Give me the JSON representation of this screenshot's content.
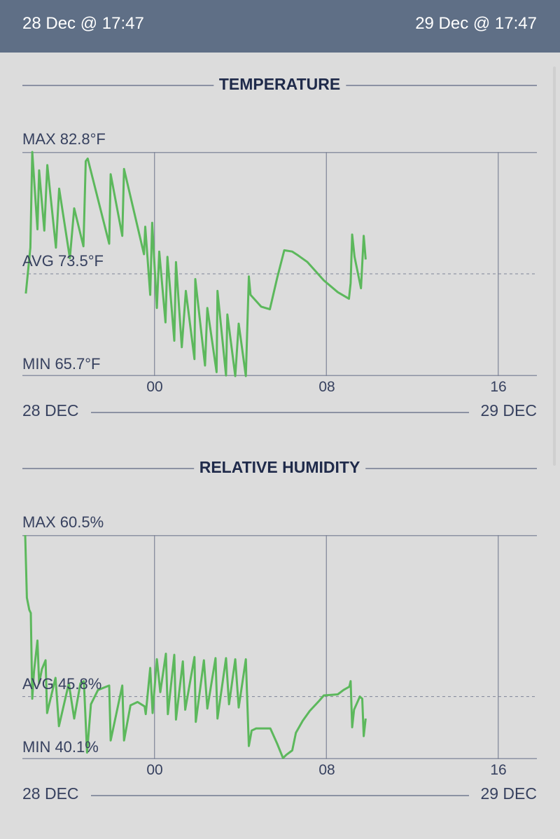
{
  "header": {
    "start": "28 Dec @ 17:47",
    "end": "29 Dec @ 17:47"
  },
  "colors": {
    "header_bg": "#5f6f86",
    "line": "#5cb85c",
    "text": "#37415f",
    "title": "#1f2a4a"
  },
  "x_ticks": [
    "00",
    "08",
    "16"
  ],
  "date_start": "28 DEC",
  "date_end": "29 DEC",
  "chart_data": [
    {
      "type": "line",
      "title": "TEMPERATURE",
      "max_label": "MAX 82.8°F",
      "avg_label": "AVG 73.5°F",
      "min_label": "MIN 65.7°F",
      "ylim": [
        65.7,
        82.8
      ],
      "avg": 73.5,
      "xlim_hours": [
        -6.15,
        17.8
      ],
      "x_ticks_hours": [
        0,
        8,
        16
      ],
      "x_unit": "hours from 29 Dec 00:00",
      "x": [
        -5.99,
        -5.78,
        -5.69,
        -5.45,
        -5.37,
        -5.13,
        -4.99,
        -4.59,
        -4.44,
        -3.94,
        -3.74,
        -3.31,
        -3.2,
        -3.11,
        -2.11,
        -2.04,
        -1.5,
        -1.42,
        -0.49,
        -0.43,
        -0.2,
        -0.11,
        0.11,
        0.22,
        0.51,
        0.6,
        0.92,
        1.0,
        1.27,
        1.46,
        1.86,
        1.9,
        2.35,
        2.46,
        2.89,
        2.93,
        3.33,
        3.39,
        3.76,
        3.92,
        4.25,
        4.39,
        4.47,
        4.96,
        5.37,
        5.71,
        6.04,
        6.41,
        6.69,
        7.12,
        7.88,
        8.53,
        9.05,
        9.13,
        9.2,
        9.31,
        9.61,
        9.74,
        9.83
      ],
      "y": [
        72.0,
        75.5,
        82.8,
        76.9,
        81.4,
        76.8,
        81.8,
        75.5,
        80.0,
        74.7,
        78.5,
        75.6,
        82.1,
        82.3,
        75.8,
        81.1,
        76.4,
        81.5,
        75.0,
        77.1,
        71.9,
        77.4,
        70.9,
        75.2,
        69.8,
        74.8,
        68.4,
        74.4,
        67.9,
        72.2,
        67.0,
        73.1,
        66.5,
        70.9,
        66.0,
        72.2,
        65.75,
        70.4,
        65.7,
        69.7,
        65.7,
        73.3,
        71.9,
        71.0,
        70.8,
        73.2,
        75.3,
        75.2,
        74.9,
        74.4,
        73.0,
        72.1,
        71.6,
        72.8,
        76.5,
        74.8,
        72.4,
        76.4,
        74.6
      ]
    },
    {
      "type": "line",
      "title": "RELATIVE HUMIDITY",
      "max_label": "MAX 60.5%",
      "avg_label": "AVG 45.8%",
      "min_label": "MIN 40.1%",
      "ylim": [
        40.1,
        60.5
      ],
      "avg": 45.8,
      "xlim_hours": [
        -6.15,
        17.8
      ],
      "x_ticks_hours": [
        0,
        8,
        16
      ],
      "x_unit": "hours from 29 Dec 00:00",
      "x": [
        -6.02,
        -5.94,
        -5.83,
        -5.76,
        -5.69,
        -5.61,
        -5.45,
        -5.37,
        -5.24,
        -5.07,
        -5.0,
        -4.61,
        -4.45,
        -3.99,
        -3.74,
        -3.45,
        -3.29,
        -3.14,
        -2.96,
        -2.63,
        -2.11,
        -2.04,
        -1.5,
        -1.42,
        -1.12,
        -0.79,
        -0.46,
        -0.41,
        -0.2,
        -0.09,
        0.11,
        0.27,
        0.53,
        0.62,
        0.92,
        1.0,
        1.32,
        1.43,
        1.86,
        1.92,
        2.3,
        2.46,
        2.84,
        2.93,
        3.33,
        3.47,
        3.76,
        3.92,
        4.25,
        4.39,
        4.52,
        4.73,
        5.39,
        5.71,
        5.98,
        6.14,
        6.41,
        6.58,
        6.9,
        7.23,
        7.66,
        7.88,
        8.53,
        8.8,
        9.07,
        9.13,
        9.2,
        9.29,
        9.56,
        9.67,
        9.74,
        9.83
      ],
      "y": [
        60.5,
        54.8,
        53.7,
        53.4,
        45.6,
        48.1,
        50.9,
        47.0,
        48.3,
        49.1,
        44.3,
        47.5,
        43.1,
        47.0,
        43.8,
        47.0,
        47.2,
        40.7,
        45.1,
        46.4,
        46.8,
        41.8,
        46.8,
        41.8,
        45.0,
        45.3,
        44.9,
        44.2,
        48.4,
        44.3,
        49.2,
        46.2,
        49.7,
        44.2,
        49.6,
        43.7,
        49.0,
        44.6,
        49.4,
        43.5,
        49.1,
        44.7,
        49.3,
        43.8,
        49.3,
        45.1,
        49.2,
        44.8,
        49.2,
        41.3,
        42.7,
        42.9,
        42.9,
        41.5,
        40.2,
        40.5,
        40.9,
        42.5,
        43.6,
        44.5,
        45.4,
        45.9,
        46.0,
        46.4,
        46.7,
        47.2,
        43.0,
        44.6,
        45.8,
        45.6,
        42.2,
        43.8
      ]
    }
  ]
}
